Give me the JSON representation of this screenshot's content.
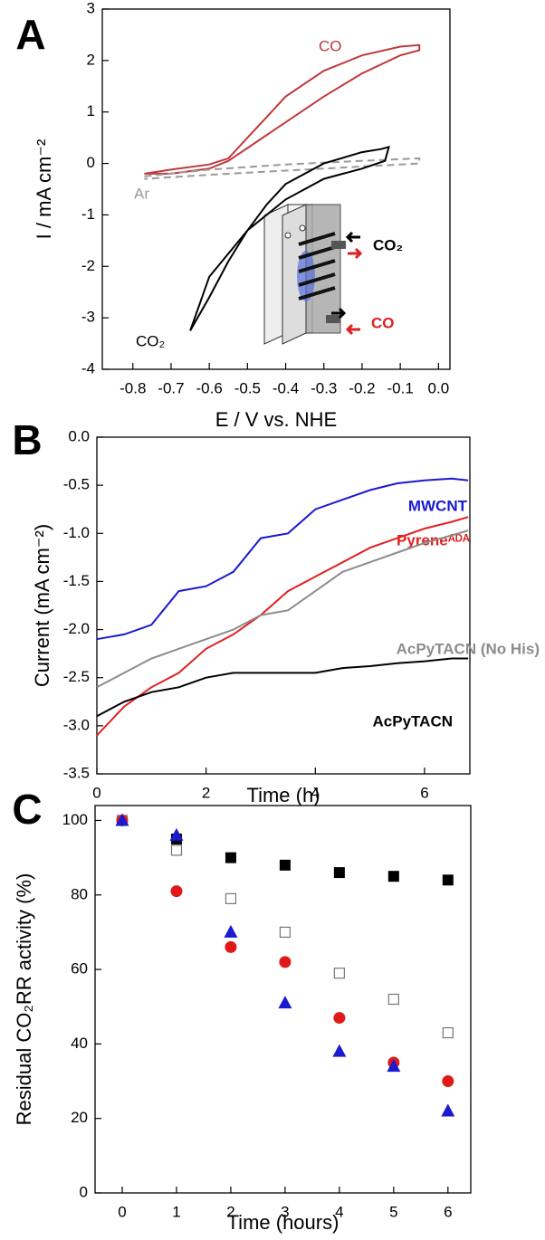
{
  "chart_data": [
    {
      "type": "line",
      "panel": "A",
      "xlabel": "E / V vs. NHE",
      "ylabel": "I / mA cm⁻²",
      "xlim": [
        -0.88,
        0.03
      ],
      "ylim": [
        -4,
        3
      ],
      "xticks": [
        -0.8,
        -0.7,
        -0.6,
        -0.5,
        -0.4,
        -0.3,
        -0.2,
        -0.1,
        {
          "value": 0,
          "label": "0.0"
        }
      ],
      "yticks": [
        -4,
        -3,
        -2,
        -1,
        0,
        1,
        2,
        3
      ],
      "annotations": [
        "CO₂",
        "CO"
      ],
      "series": [
        {
          "name": "CO",
          "color": "#c0393b",
          "x": [
            -0.77,
            -0.7,
            -0.6,
            -0.55,
            -0.5,
            -0.45,
            -0.4,
            -0.3,
            -0.2,
            -0.1,
            -0.05,
            -0.05,
            -0.1,
            -0.2,
            -0.3,
            -0.4,
            -0.5,
            -0.55,
            -0.6,
            -0.7,
            -0.77
          ],
          "values": [
            -0.2,
            -0.12,
            -0.02,
            0.1,
            0.5,
            0.9,
            1.3,
            1.8,
            2.1,
            2.27,
            2.3,
            2.2,
            2.1,
            1.75,
            1.3,
            0.8,
            0.3,
            0.05,
            -0.1,
            -0.2,
            -0.2
          ]
        },
        {
          "name": "Ar",
          "color": "#9a9a9a",
          "dash": true,
          "x": [
            -0.77,
            -0.6,
            -0.4,
            -0.2,
            -0.05,
            -0.05,
            -0.2,
            -0.4,
            -0.6,
            -0.77
          ],
          "values": [
            -0.25,
            -0.12,
            -0.02,
            0.05,
            0.1,
            0.0,
            -0.06,
            -0.14,
            -0.22,
            -0.3
          ]
        },
        {
          "name": "CO₂",
          "color": "#000000",
          "x": [
            -0.65,
            -0.6,
            -0.55,
            -0.5,
            -0.45,
            -0.4,
            -0.3,
            -0.2,
            -0.15,
            -0.13,
            -0.14,
            -0.2,
            -0.3,
            -0.4,
            -0.5,
            -0.6,
            -0.65
          ],
          "values": [
            -3.25,
            -2.6,
            -1.9,
            -1.3,
            -0.8,
            -0.4,
            0.0,
            0.22,
            0.28,
            0.32,
            0.05,
            -0.1,
            -0.3,
            -0.7,
            -1.3,
            -2.2,
            -3.25
          ]
        }
      ]
    },
    {
      "type": "line",
      "panel": "B",
      "xlabel": "Time (h)",
      "ylabel": "Current (mA cm⁻²)",
      "xlim": [
        0,
        6.83
      ],
      "ylim": [
        -3.5,
        0
      ],
      "xticks": [
        0,
        2,
        4,
        6
      ],
      "yticks": [
        {
          "value": 0,
          "label": "0.0"
        },
        -0.5,
        {
          "value": -1,
          "label": "-1.0"
        },
        -1.5,
        {
          "value": -2,
          "label": "-2.0"
        },
        -2.5,
        {
          "value": -3,
          "label": "-3.0"
        },
        -3.5
      ],
      "x": [
        0,
        0.5,
        1,
        1.5,
        2,
        2.5,
        3,
        3.5,
        4,
        4.5,
        5,
        5.5,
        6,
        6.5,
        6.8
      ],
      "series": [
        {
          "name": "MWCNT",
          "color": "#1a1ad0",
          "values": [
            -2.1,
            -2.05,
            -1.95,
            -1.6,
            -1.55,
            -1.4,
            -1.05,
            -1.0,
            -0.75,
            -0.65,
            -0.55,
            -0.48,
            -0.45,
            -0.43,
            -0.45
          ]
        },
        {
          "name": "Pyreneᴬᴰᴬ",
          "color": "#e02020",
          "values": [
            -3.1,
            -2.8,
            -2.6,
            -2.45,
            -2.2,
            -2.05,
            -1.85,
            -1.6,
            -1.45,
            -1.3,
            -1.15,
            -1.05,
            -0.95,
            -0.88,
            -0.83
          ]
        },
        {
          "name": "AcPyTACN (No His)",
          "color": "#8c8c8c",
          "values": [
            -2.6,
            -2.45,
            -2.3,
            -2.2,
            -2.1,
            -2.0,
            -1.85,
            -1.8,
            -1.6,
            -1.4,
            -1.3,
            -1.2,
            -1.1,
            -1.02,
            -0.97
          ]
        },
        {
          "name": "AcPyTACN",
          "color": "#000000",
          "values": [
            -2.9,
            -2.75,
            -2.65,
            -2.6,
            -2.5,
            -2.45,
            -2.45,
            -2.45,
            -2.45,
            -2.4,
            -2.38,
            -2.35,
            -2.33,
            -2.3,
            -2.3
          ]
        }
      ]
    },
    {
      "type": "scatter",
      "panel": "C",
      "xlabel": "Time (hours)",
      "ylabel": "Residual CO₂RR activity (%)",
      "xlim": [
        -0.5,
        6.42
      ],
      "ylim": [
        0,
        104
      ],
      "xticks": [
        0,
        1,
        2,
        3,
        4,
        5,
        6
      ],
      "yticks": [
        0,
        20,
        40,
        60,
        80,
        100
      ],
      "x": [
        0,
        1,
        2,
        3,
        4,
        5,
        6
      ],
      "series": [
        {
          "color": "#000000",
          "marker": "square",
          "values": [
            100,
            95,
            90,
            88,
            86,
            85,
            84
          ]
        },
        {
          "color": "#777777",
          "marker": "open-square",
          "values": [
            100,
            92,
            79,
            70,
            59,
            52,
            43
          ]
        },
        {
          "color": "#e01818",
          "marker": "circle",
          "values": [
            100,
            81,
            66,
            62,
            47,
            35,
            30
          ]
        },
        {
          "color": "#1a1ad0",
          "marker": "triangle",
          "values": [
            100,
            96,
            70,
            51,
            38,
            34,
            22
          ]
        }
      ]
    }
  ]
}
